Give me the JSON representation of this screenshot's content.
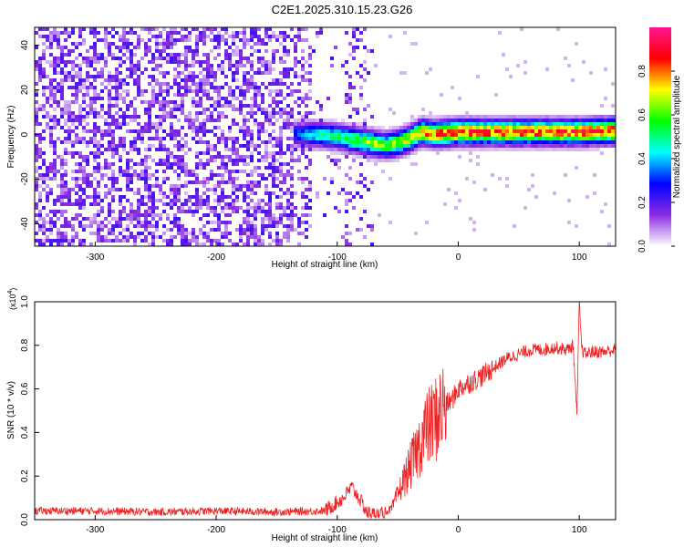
{
  "title": "C2E1.2025.310.15.23.G26",
  "colorbar": {
    "label": "Normalized spectral amplitude",
    "ticks": [
      0.0,
      0.2,
      0.4,
      0.6,
      0.8
    ],
    "tick_labels": [
      "0.0",
      "0.2",
      "0.4",
      "0.6",
      "0.8"
    ],
    "range": [
      0,
      1
    ],
    "colormap": [
      "#ffffff",
      "#8a2be2",
      "#0000ff",
      "#00ffff",
      "#00ff00",
      "#ffff00",
      "#ff0000",
      "#ff1493"
    ]
  },
  "chart_data": [
    {
      "type": "heatmap",
      "xlabel": "Height of straight line (km)",
      "ylabel": "Frequency (Hz)",
      "xlim": [
        -350,
        130
      ],
      "ylim": [
        -50,
        48
      ],
      "x_ticks": [
        -300,
        -200,
        -100,
        0,
        100
      ],
      "x_tick_labels": [
        "-300",
        "-200",
        "-100",
        "0",
        "100"
      ],
      "y_ticks": [
        -40,
        -20,
        0,
        20,
        40
      ],
      "y_tick_labels": [
        "-40",
        "-20",
        "0",
        "20",
        "40"
      ],
      "ridge": {
        "x": [
          -135,
          -120,
          -100,
          -90,
          -80,
          -70,
          -60,
          -50,
          -40,
          -30,
          -20,
          -10,
          0,
          20,
          50,
          100,
          130
        ],
        "y": [
          0,
          0,
          -1,
          -2,
          -3,
          -4,
          -5,
          -4,
          -2,
          1,
          0,
          0.5,
          1,
          1,
          1,
          1,
          1.5
        ],
        "amplitude": [
          0.3,
          0.45,
          0.5,
          0.55,
          0.6,
          0.65,
          0.6,
          0.65,
          0.7,
          0.75,
          0.8,
          0.85,
          0.85,
          0.82,
          0.82,
          0.85,
          0.85
        ]
      },
      "noise_region_x": [
        -350,
        -70
      ],
      "noise_amplitude": 0.15
    },
    {
      "type": "line",
      "xlabel": "Height of straight line (km)",
      "ylabel": "SNR (10 * v/v)",
      "y_multiplier": "(x10",
      "y_multiplier_exp": "4",
      "y_multiplier_close": ")",
      "xlim": [
        -350,
        130
      ],
      "ylim": [
        0,
        1.0
      ],
      "x_ticks": [
        -300,
        -200,
        -100,
        0,
        100
      ],
      "x_tick_labels": [
        "-300",
        "-200",
        "-100",
        "0",
        "100"
      ],
      "y_ticks": [
        0.0,
        0.2,
        0.4,
        0.6,
        0.8,
        1.0
      ],
      "y_tick_labels": [
        "0.0",
        "0.2",
        "0.4",
        "0.6",
        "0.8",
        "1.0"
      ],
      "series": [
        {
          "color": "#ee2222",
          "x": [
            -350,
            -300,
            -250,
            -200,
            -150,
            -110,
            -95,
            -88,
            -82,
            -75,
            -65,
            -55,
            -45,
            -35,
            -28,
            -20,
            -12,
            -5,
            0,
            10,
            20,
            30,
            40,
            50,
            60,
            70,
            80,
            90,
            95,
            98,
            100,
            102,
            105,
            110,
            120,
            130
          ],
          "y": [
            0.04,
            0.04,
            0.035,
            0.04,
            0.035,
            0.04,
            0.1,
            0.15,
            0.1,
            0.03,
            0.02,
            0.05,
            0.18,
            0.3,
            0.4,
            0.45,
            0.52,
            0.55,
            0.6,
            0.63,
            0.66,
            0.7,
            0.74,
            0.76,
            0.78,
            0.78,
            0.79,
            0.78,
            0.8,
            0.47,
            1.0,
            0.78,
            0.76,
            0.77,
            0.77,
            0.78
          ]
        }
      ]
    }
  ]
}
